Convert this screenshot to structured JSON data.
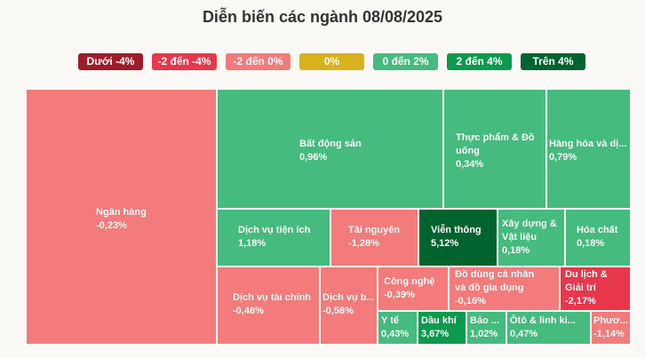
{
  "title": "Diễn biến các ngành 08/08/2025",
  "colors": {
    "below_-4": "#9e1c2b",
    "-4_to_-2": "#e8374a",
    "-2_to_0": "#f37b7b",
    "zero": "#d8b21e",
    "0_to_2": "#45bb7e",
    "2_to_4": "#0b9a4e",
    "above_4": "#03632f"
  },
  "legend": [
    {
      "label": "Dưới -4%",
      "color": "#9e1c2b"
    },
    {
      "label": "-2 đến -4%",
      "color": "#e8374a"
    },
    {
      "label": "-2 đến 0%",
      "color": "#f37b7b"
    },
    {
      "label": "0%",
      "color": "#d8b21e"
    },
    {
      "label": "0 đến 2%",
      "color": "#45bb7e"
    },
    {
      "label": "2 đến 4%",
      "color": "#0b9a4e"
    },
    {
      "label": "Trên 4%",
      "color": "#03632f"
    }
  ],
  "chart_data": {
    "type": "treemap",
    "title": "Diễn biến các ngành 08/08/2025",
    "unit": "%",
    "items": [
      {
        "name": "Ngân hàng",
        "value": -0.23,
        "label": "-0,23%"
      },
      {
        "name": "Bất động sản",
        "value": 0.96,
        "label": "0,96%"
      },
      {
        "name": "Thực phẩm & Đồ uống",
        "value": 0.34,
        "label": "0,34%"
      },
      {
        "name": "Hàng hóa và dị...",
        "value": 0.79,
        "label": "0,79%"
      },
      {
        "name": "Dịch vụ tiện ích",
        "value": 1.18,
        "label": "1,18%"
      },
      {
        "name": "Tài nguyên",
        "value": -1.28,
        "label": "-1,28%"
      },
      {
        "name": "Viễn thông",
        "value": 5.12,
        "label": "5,12%"
      },
      {
        "name": "Xây dựng & Vật liệu",
        "value": 0.18,
        "label": "0,18%"
      },
      {
        "name": "Hóa chất",
        "value": 0.18,
        "label": "0,18%"
      },
      {
        "name": "Dịch vụ tài chính",
        "value": -0.48,
        "label": "-0,48%"
      },
      {
        "name": "Dịch vụ b...",
        "value": -0.58,
        "label": "-0,58%"
      },
      {
        "name": "Công nghệ",
        "value": -0.39,
        "label": "-0,39%"
      },
      {
        "name": "Y tế",
        "value": 0.43,
        "label": "0,43%"
      },
      {
        "name": "Dầu khí",
        "value": 3.67,
        "label": "3,67%"
      },
      {
        "name": "Đồ dùng cá nhân và đồ gia dụng",
        "value": -0.16,
        "label": "-0,16%"
      },
      {
        "name": "Du lịch & Giải trí",
        "value": -2.17,
        "label": "-2,17%"
      },
      {
        "name": "Bảo ...",
        "value": 1.02,
        "label": "1,02%"
      },
      {
        "name": "Ôtô & linh ki...",
        "value": 0.47,
        "label": "0,47%"
      },
      {
        "name": "Phươ...",
        "value": -1.14,
        "label": "-1,14%"
      }
    ]
  }
}
